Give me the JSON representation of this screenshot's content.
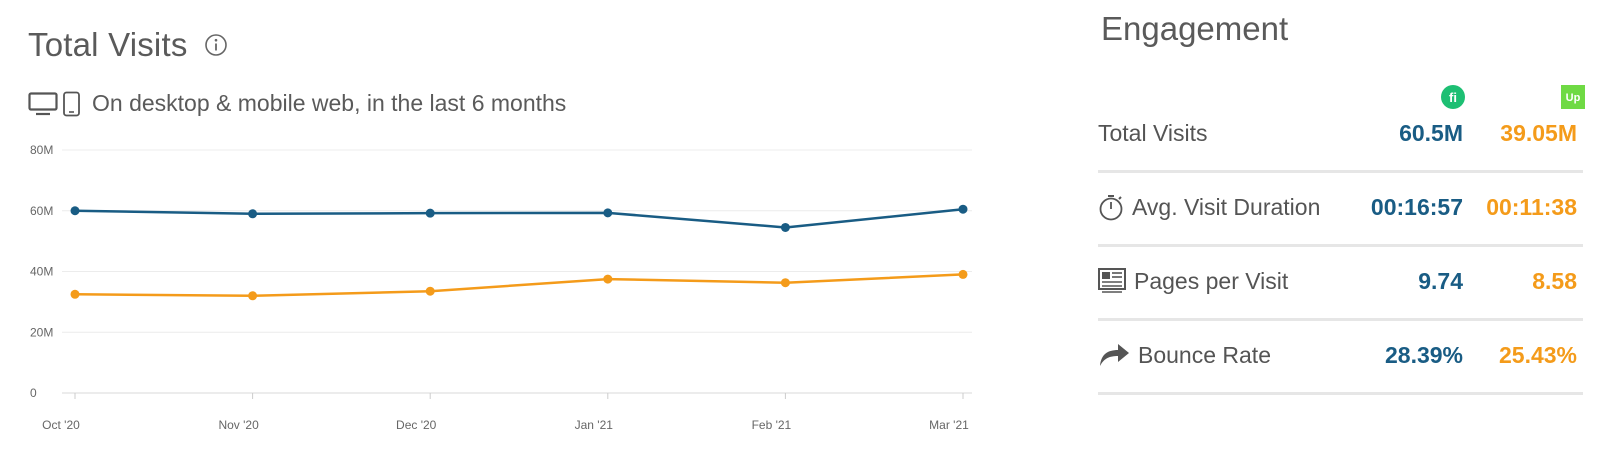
{
  "left": {
    "title": "Total Visits",
    "subtitle": "On desktop & mobile web, in the last 6 months"
  },
  "chart_data": {
    "type": "line",
    "title": "Total Visits",
    "categories": [
      "Oct '20",
      "Nov '20",
      "Dec '20",
      "Jan '21",
      "Feb '21",
      "Mar '21"
    ],
    "y_ticks": [
      "0",
      "20M",
      "40M",
      "60M",
      "80M"
    ],
    "ylim": [
      0,
      80
    ],
    "grid": true,
    "series": [
      {
        "values": [
          60.0,
          59.0,
          59.2,
          59.3,
          54.5,
          60.5
        ],
        "color": "#195c84"
      },
      {
        "values": [
          32.5,
          32.0,
          33.5,
          37.5,
          36.3,
          39.05
        ],
        "color": "#f49b1a"
      }
    ]
  },
  "engagement": {
    "title": "Engagement",
    "site_a_logo_text": "fi",
    "site_b_logo_text": "Up",
    "rows": [
      {
        "label": "Total Visits",
        "icon": "",
        "a": "60.5M",
        "b": "39.05M"
      },
      {
        "label": "Avg. Visit Duration",
        "icon": "stopwatch-icon",
        "a": "00:16:57",
        "b": "00:11:38"
      },
      {
        "label": "Pages per Visit",
        "icon": "pages-icon",
        "a": "9.74",
        "b": "8.58"
      },
      {
        "label": "Bounce Rate",
        "icon": "bounce-arrow-icon",
        "a": "28.39%",
        "b": "25.43%"
      }
    ]
  }
}
